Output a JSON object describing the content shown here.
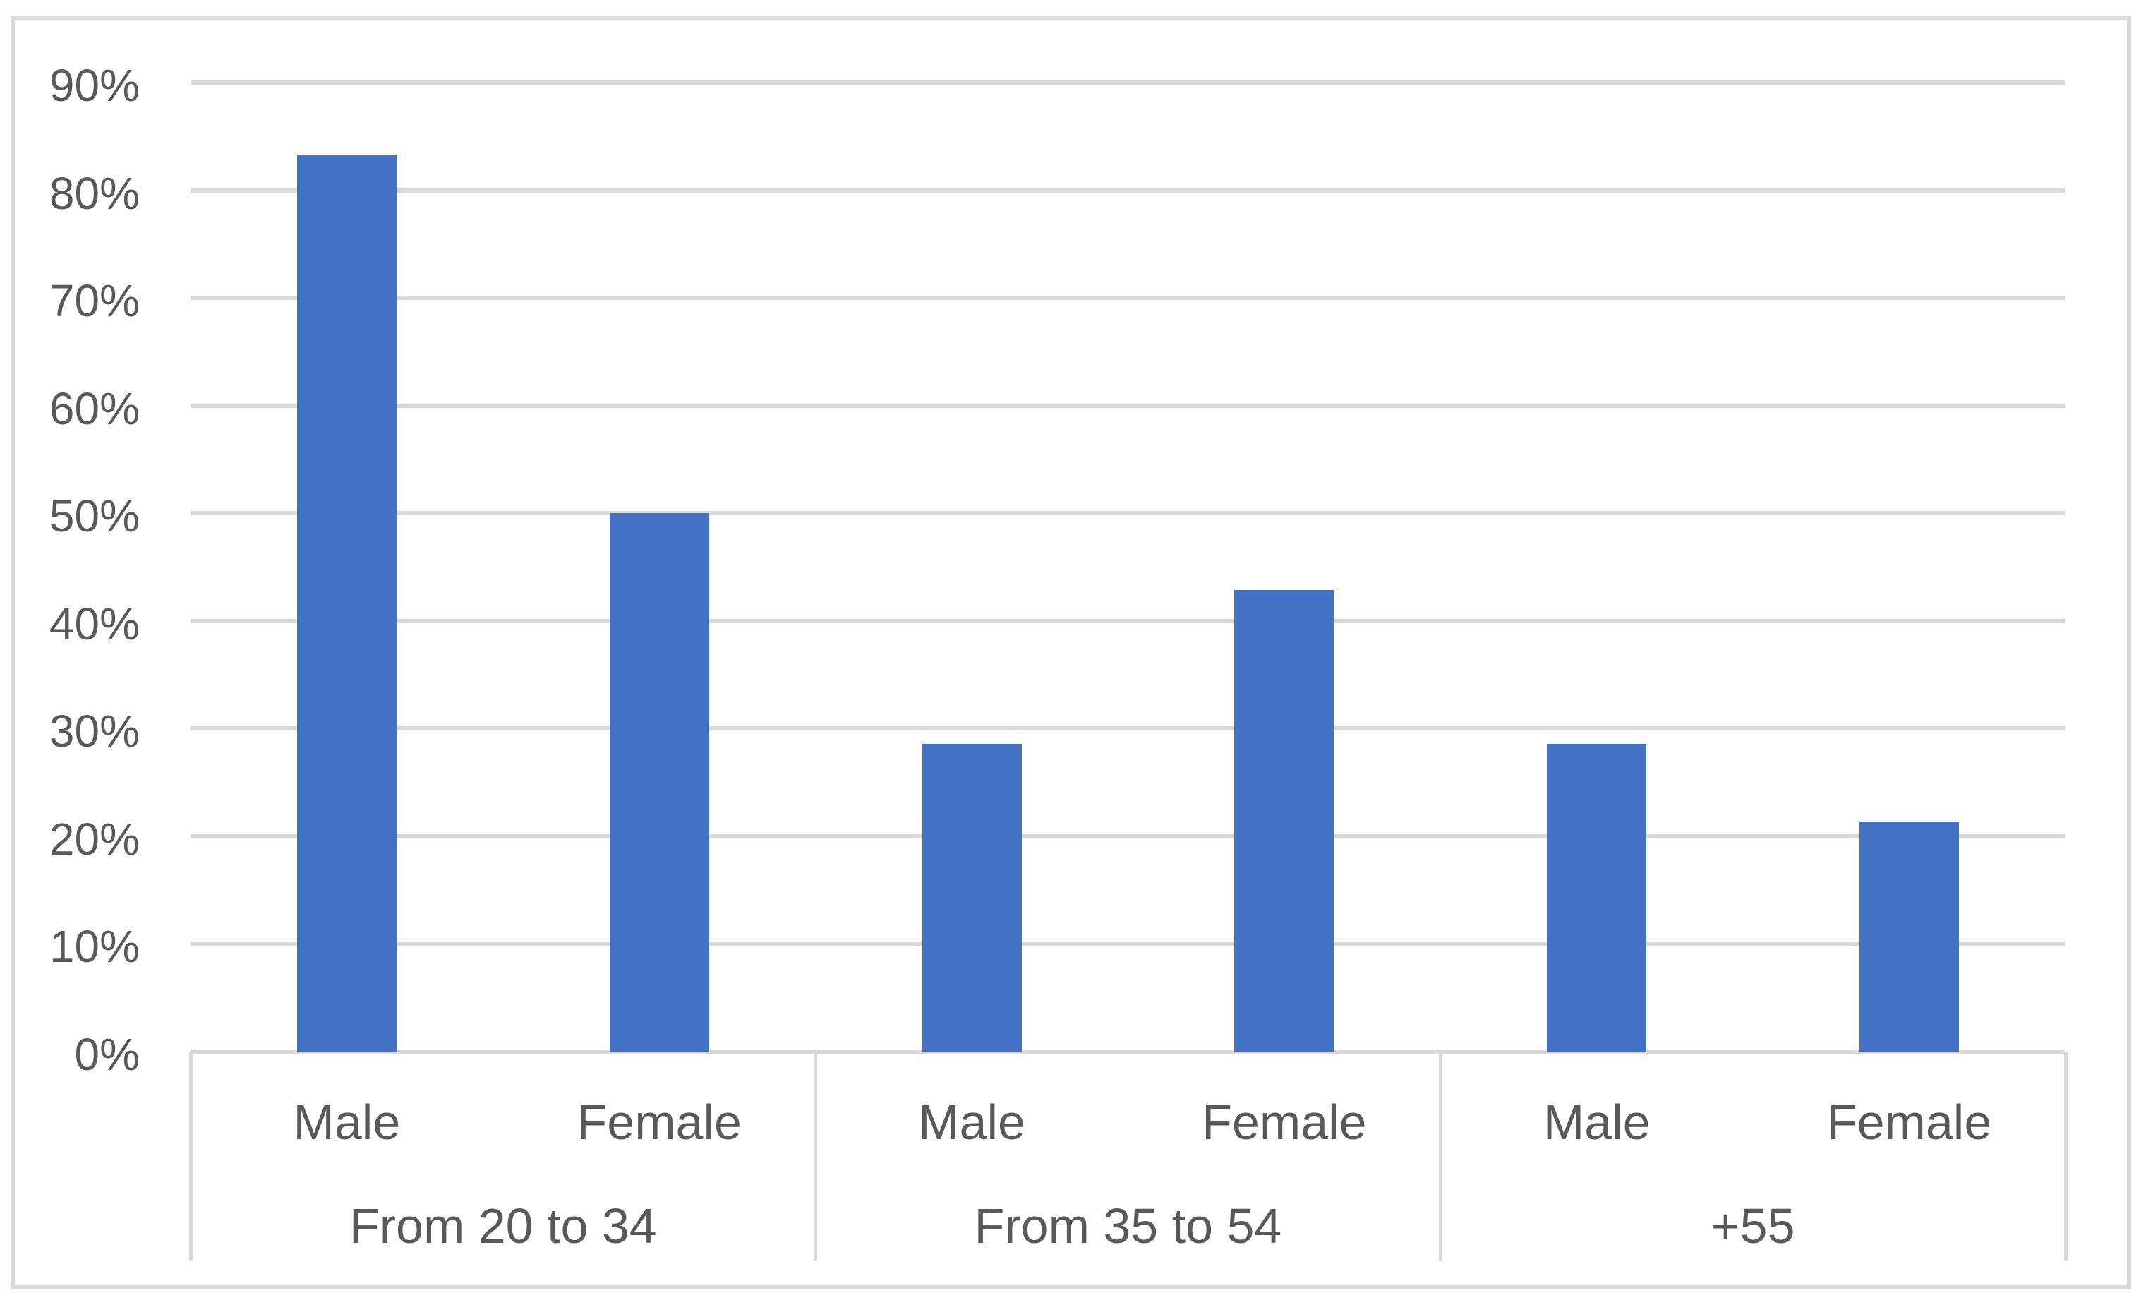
{
  "chart_data": {
    "type": "bar",
    "title": "",
    "xlabel": "",
    "ylabel": "",
    "unit": "%",
    "ylim": [
      0,
      90
    ],
    "grid": true,
    "legend": null,
    "y_axis": {
      "tick_labels": [
        "90%",
        "80%",
        "70%",
        "60%",
        "50%",
        "40%",
        "30%",
        "20%",
        "10%",
        "0%"
      ],
      "tick_values": [
        90,
        80,
        70,
        60,
        50,
        40,
        30,
        20,
        10,
        0
      ]
    },
    "categories": [
      "Male",
      "Female",
      "Male",
      "Female",
      "Male",
      "Female"
    ],
    "values": [
      83.3,
      50.0,
      28.6,
      42.9,
      28.6,
      21.4
    ],
    "groups": [
      {
        "label": "From 20 to 34",
        "bars": [
          {
            "label": "Male",
            "value": 83.3
          },
          {
            "label": "Female",
            "value": 50.0
          }
        ]
      },
      {
        "label": "From 35 to 54",
        "bars": [
          {
            "label": "Male",
            "value": 28.6
          },
          {
            "label": "Female",
            "value": 42.9
          }
        ]
      },
      {
        "label": "+55",
        "bars": [
          {
            "label": "Male",
            "value": 28.6
          },
          {
            "label": "Female",
            "value": 21.4
          }
        ]
      }
    ]
  },
  "style": {
    "bar_color": "#4472C4",
    "grid_color": "#D9D9D9",
    "border_color": "#D9D9D9",
    "text_color": "#595959",
    "background": "#FFFFFF"
  }
}
